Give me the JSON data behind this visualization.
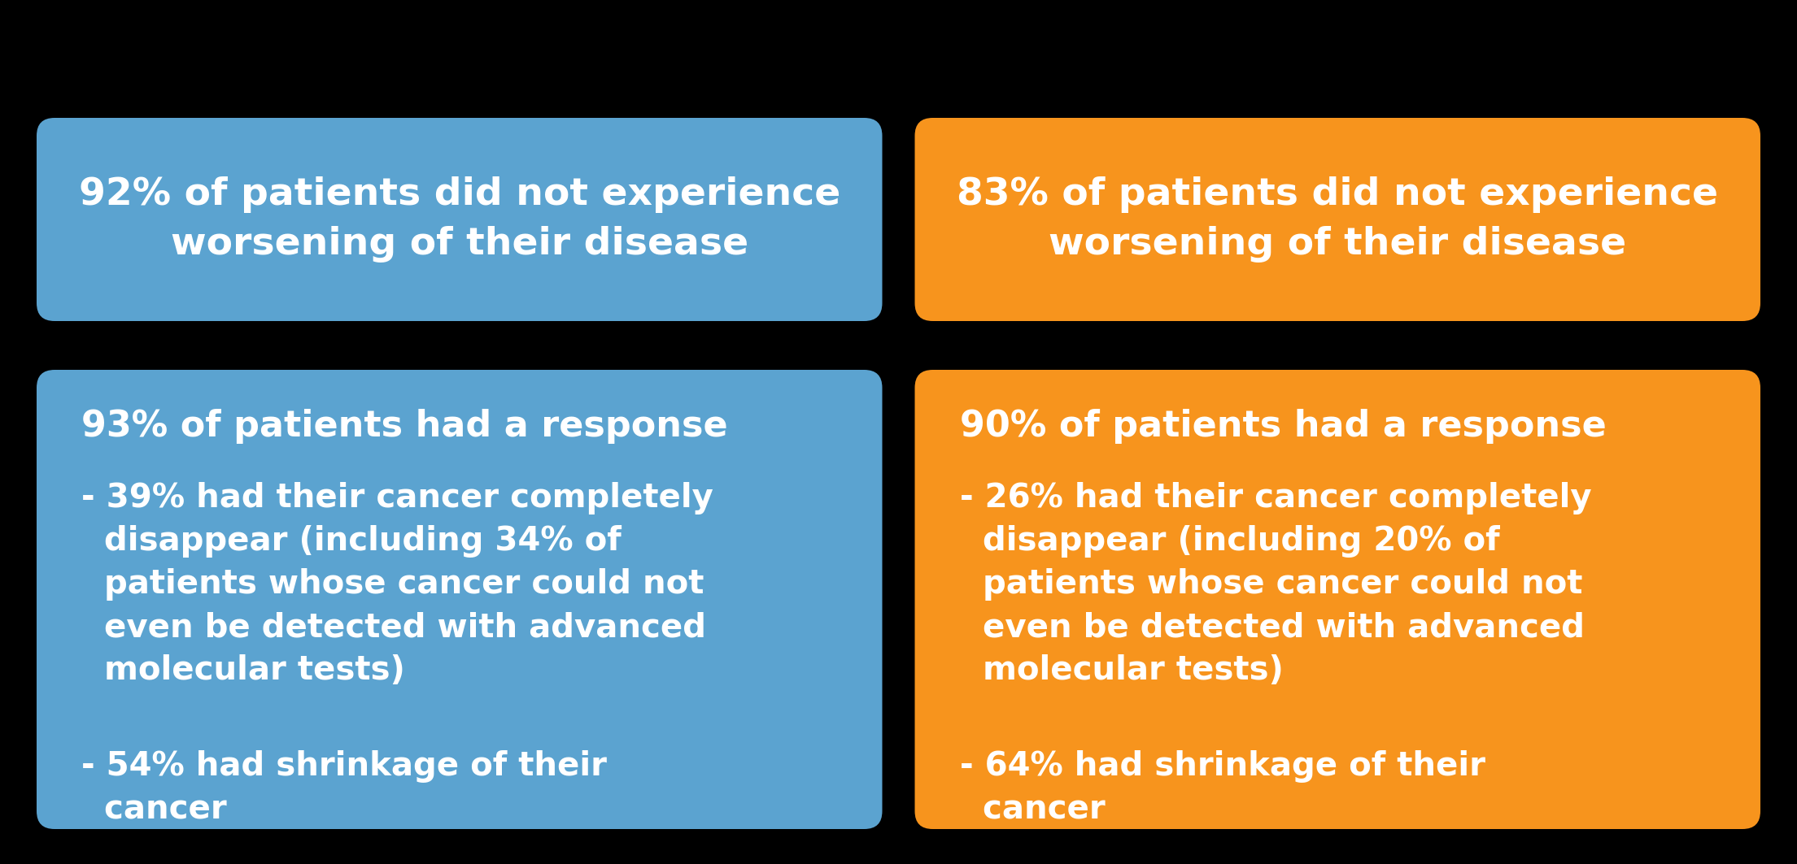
{
  "background_color": "#000000",
  "blue_color": "#5BA3D0",
  "orange_color": "#F7941D",
  "text_color": "#FFFFFF",
  "figsize": [
    22.09,
    10.63
  ],
  "dpi": 100,
  "top_left_text": "92% of patients did not experience\nworsening of their disease",
  "top_right_text": "83% of patients did not experience\nworsening of their disease",
  "bl_header": "93% of patients had a response",
  "bl_bullet1_line1": "- 39% had their cancer completely",
  "bl_bullet1_line2": "  disappear (including 34% of",
  "bl_bullet1_line3": "  patients whose cancer could not",
  "bl_bullet1_line4": "  even be detected with advanced",
  "bl_bullet1_line5": "  molecular tests)",
  "bl_bullet2_line1": "- 54% had shrinkage of their",
  "bl_bullet2_line2": "  cancer",
  "br_header": "90% of patients had a response",
  "br_bullet1_line1": "- 26% had their cancer completely",
  "br_bullet1_line2": "  disappear (including 20% of",
  "br_bullet1_line3": "  patients whose cancer could not",
  "br_bullet1_line4": "  even be detected with advanced",
  "br_bullet1_line5": "  molecular tests)",
  "br_bullet2_line1": "- 64% had shrinkage of their",
  "br_bullet2_line2": "  cancer"
}
